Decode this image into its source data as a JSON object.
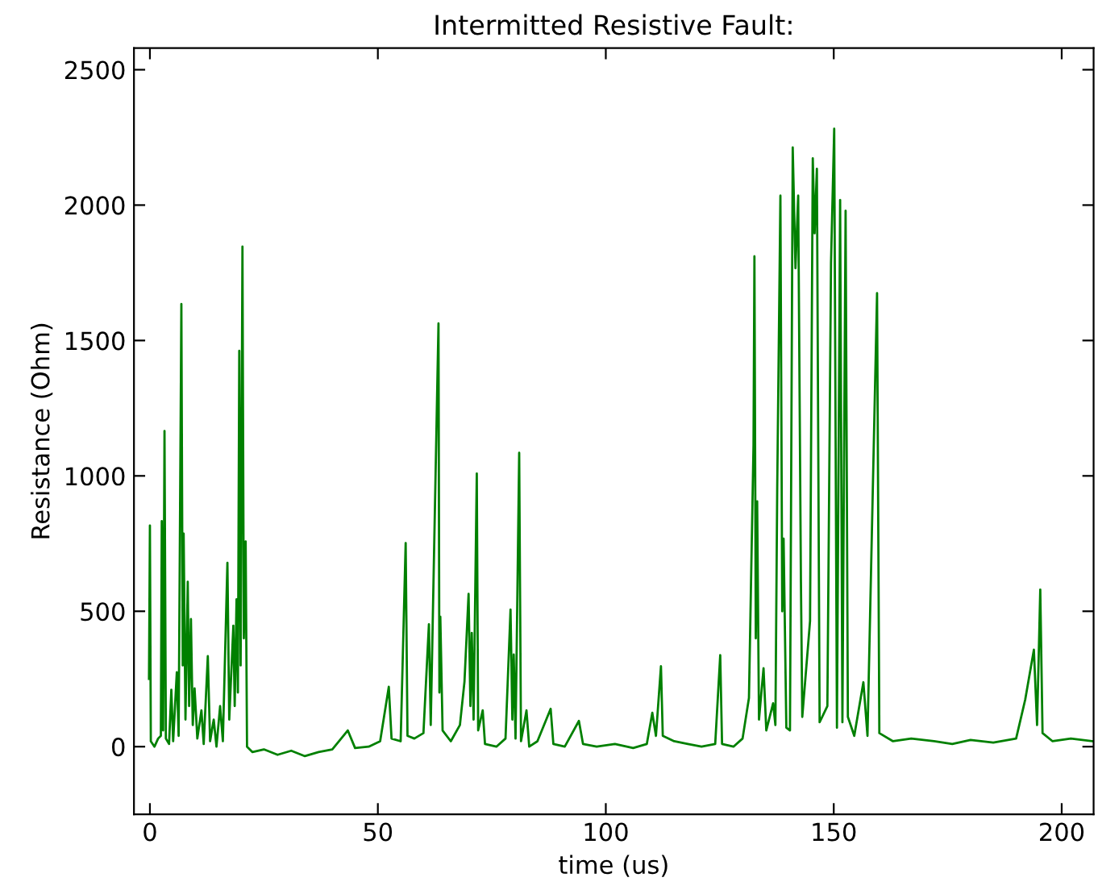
{
  "chart_data": {
    "type": "line",
    "title": "Intermitted Resistive Fault:",
    "xlabel": "time (us)",
    "ylabel": "Resistance (Ohm)",
    "xlim": [
      -3.5,
      207
    ],
    "xticks": [
      0,
      50,
      100,
      150,
      200
    ],
    "ylim": [
      -250,
      2580
    ],
    "yticks": [
      0,
      500,
      1000,
      1500,
      2000,
      2500
    ],
    "grid": false,
    "legend": false,
    "marker": "none",
    "line_style": "solid",
    "series": [
      {
        "color": "#008000",
        "x": [
          -0.2,
          0,
          0.2,
          1,
          1.8,
          2.4,
          2.6,
          2.9,
          3.2,
          3.5,
          4.2,
          4.7,
          5.1,
          5.9,
          6.3,
          6.9,
          7.2,
          7.4,
          7.8,
          8.3,
          8.6,
          9.0,
          9.4,
          9.8,
          10.4,
          11.3,
          11.8,
          12.7,
          13.2,
          14,
          14.6,
          15.4,
          16,
          17,
          17.4,
          18.3,
          18.6,
          19,
          19.3,
          19.6,
          19.9,
          20.3,
          20.6,
          21,
          21.3,
          22.5,
          25,
          28,
          31,
          34,
          37,
          40,
          43.4,
          45,
          48,
          50.5,
          52.4,
          53,
          55,
          56.1,
          56.5,
          58,
          60,
          61.2,
          61.6,
          63.3,
          63.5,
          63.7,
          64.2,
          66,
          68,
          69,
          69.9,
          70.3,
          70.6,
          71.0,
          71.7,
          72,
          73,
          73.5,
          76,
          78,
          79.1,
          79.5,
          79.8,
          80.2,
          81,
          81.4,
          82.6,
          83.2,
          85,
          87.9,
          88.5,
          91,
          94.1,
          95,
          98,
          102,
          106,
          109,
          110.2,
          111,
          112.1,
          112.5,
          115,
          118,
          121,
          124,
          125.1,
          125.5,
          128,
          130,
          131.4,
          132.4,
          132.6,
          132.9,
          133.2,
          133.6,
          134.6,
          135.2,
          136.7,
          137.2,
          137.6,
          138.3,
          138.7,
          139,
          139.6,
          140.4,
          141,
          141.6,
          142.2,
          142.8,
          143.1,
          144.8,
          145.4,
          145.8,
          146.3,
          146.9,
          148.6,
          149.4,
          150.1,
          150.7,
          151.4,
          151.9,
          152.6,
          153.1,
          154.5,
          156.5,
          157.4,
          159.5,
          160,
          163,
          167,
          172,
          176,
          180,
          185,
          190,
          192,
          193.9,
          194.6,
          195.3,
          195.8,
          198,
          202,
          207
        ],
        "values": [
          250,
          817,
          20,
          0,
          30,
          40,
          833,
          60,
          1166,
          30,
          10,
          210,
          20,
          275,
          40,
          1635,
          300,
          787,
          100,
          609,
          150,
          471,
          80,
          215,
          30,
          134,
          10,
          334,
          20,
          100,
          0,
          150,
          20,
          679,
          100,
          447,
          150,
          544,
          200,
          1462,
          300,
          1847,
          400,
          758,
          0,
          -20,
          -10,
          -30,
          -15,
          -35,
          -20,
          -10,
          60,
          -5,
          0,
          20,
          221,
          30,
          20,
          752,
          40,
          30,
          50,
          452,
          80,
          1563,
          200,
          480,
          60,
          20,
          80,
          240,
          564,
          150,
          420,
          100,
          1009,
          60,
          134,
          10,
          0,
          30,
          506,
          100,
          340,
          30,
          1085,
          20,
          134,
          0,
          20,
          140,
          10,
          0,
          95,
          10,
          0,
          10,
          -5,
          10,
          125,
          40,
          297,
          40,
          20,
          10,
          0,
          10,
          338,
          10,
          0,
          30,
          180,
          1114,
          1811,
          400,
          906,
          100,
          290,
          60,
          160,
          80,
          956,
          2035,
          500,
          768,
          70,
          60,
          2213,
          1767,
          2035,
          609,
          110,
          464,
          2173,
          1896,
          2134,
          90,
          150,
          1787,
          2282,
          70,
          2019,
          90,
          1979,
          110,
          40,
          238,
          40,
          1675,
          50,
          20,
          30,
          20,
          10,
          25,
          15,
          30,
          174,
          358,
          80,
          580,
          50,
          20,
          30,
          20
        ]
      }
    ]
  }
}
